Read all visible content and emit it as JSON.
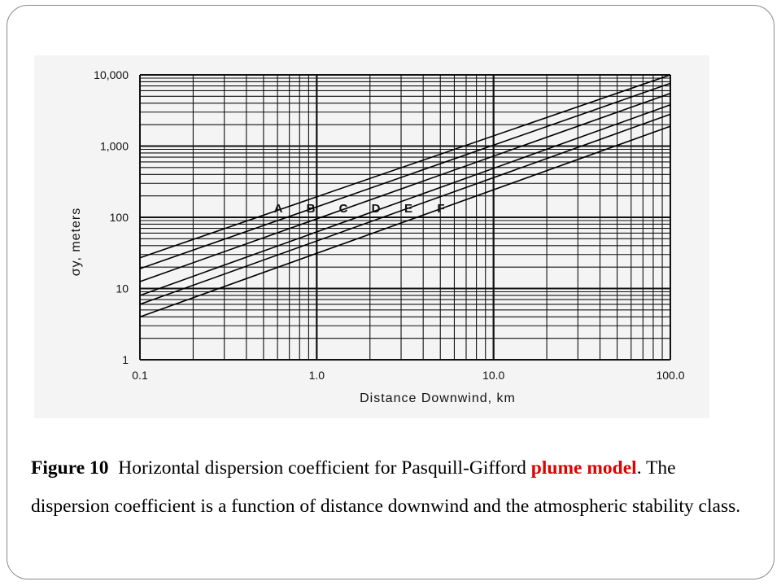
{
  "caption": {
    "figure_no": "Figure 10",
    "text_a": "Horizontal dispersion coefficient for Pasquill-Gifford",
    "hl_1": "plume",
    "hl_2": "model",
    "text_b": ". The dispersion coefficient is a function of distance downwind and the atmospheric stability class."
  },
  "colors": {
    "highlight": "#e00000",
    "text": "#000000",
    "grid": "#111111"
  },
  "chart_data": {
    "type": "line",
    "xscale": "log",
    "yscale": "log",
    "xlabel": "Distance Downwind, km",
    "ylabel": "σy, meters",
    "xlim": [
      0.1,
      100.0
    ],
    "ylim": [
      1,
      10000
    ],
    "x_ticks": [
      "0.1",
      "1.0",
      "10.0",
      "100.0"
    ],
    "y_ticks": [
      "1",
      "10",
      "100",
      "1,000",
      "10,000"
    ],
    "grid": true,
    "x": [
      0.1,
      100.0
    ],
    "series": [
      {
        "name": "A",
        "values": [
          27,
          10000
        ]
      },
      {
        "name": "B",
        "values": [
          19,
          7600
        ]
      },
      {
        "name": "C",
        "values": [
          12.5,
          5500
        ]
      },
      {
        "name": "D",
        "values": [
          8,
          3800
        ]
      },
      {
        "name": "E",
        "values": [
          6,
          2800
        ]
      },
      {
        "name": "F",
        "values": [
          4,
          1900
        ]
      }
    ]
  }
}
